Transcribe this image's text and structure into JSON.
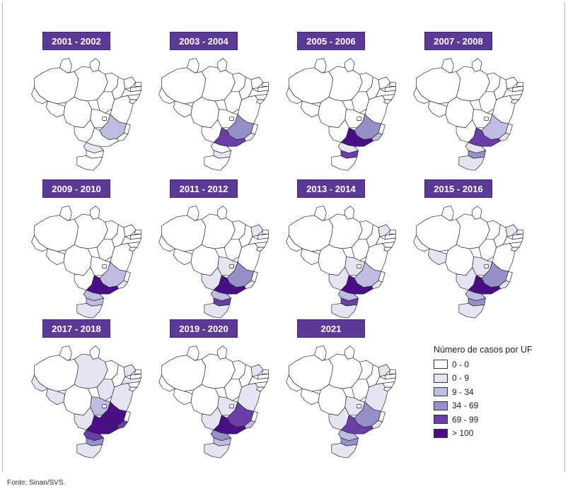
{
  "figure": {
    "source": "Fonte: Sinan/SVS."
  },
  "legend": {
    "title": "Número de casos por UF",
    "classes": [
      {
        "label": "0 - 0",
        "color": "#ffffff"
      },
      {
        "label": "0 - 9",
        "color": "#e6e4f2"
      },
      {
        "label": "9 - 34",
        "color": "#bcbde0"
      },
      {
        "label": "34 - 69",
        "color": "#9391c8"
      },
      {
        "label": "69 - 99",
        "color": "#6a3ea7"
      },
      {
        "label": "> 100",
        "color": "#4a0f86"
      }
    ]
  },
  "periods": [
    {
      "label": "2001 - 2002",
      "classes": {
        "mg": 2,
        "sp": 0,
        "pr": 1,
        "sc": 0,
        "rs": 0,
        "ms": 0,
        "go": 0,
        "rj": 0
      }
    },
    {
      "label": "2003 - 2004",
      "classes": {
        "mg": 3,
        "sp": 4,
        "pr": 0,
        "sc": 1,
        "rs": 0,
        "ms": 0,
        "go": 0,
        "rj": 1
      }
    },
    {
      "label": "2005 - 2006",
      "classes": {
        "mg": 3,
        "sp": 5,
        "pr": 1,
        "sc": 4,
        "rs": 0,
        "ms": 0,
        "go": 0,
        "rj": 2
      }
    },
    {
      "label": "2007 - 2008",
      "classes": {
        "mg": 2,
        "sp": 4,
        "pr": 1,
        "sc": 3,
        "rs": 1,
        "ms": 0,
        "go": 0,
        "rj": 1
      }
    },
    {
      "label": "2009 - 2010",
      "classes": {
        "mg": 2,
        "sp": 5,
        "pr": 2,
        "sc": 2,
        "rs": 1,
        "ms": 0,
        "go": 0,
        "rj": 1
      }
    },
    {
      "label": "2011 - 2012",
      "classes": {
        "mg": 3,
        "sp": 5,
        "pr": 2,
        "sc": 4,
        "rs": 1,
        "ms": 1,
        "go": 1,
        "rj": 1,
        "ba": 0,
        "ce": 1
      }
    },
    {
      "label": "2013 - 2014",
      "classes": {
        "mg": 2,
        "sp": 5,
        "pr": 2,
        "sc": 4,
        "rs": 1,
        "ms": 1,
        "go": 1,
        "rj": 1,
        "ce": 1
      }
    },
    {
      "label": "2015 - 2016",
      "classes": {
        "mg": 3,
        "sp": 5,
        "pr": 2,
        "sc": 3,
        "rs": 1,
        "ms": 1,
        "go": 1,
        "rj": 1,
        "ro": 1,
        "ce": 1
      }
    },
    {
      "label": "2017 - 2018",
      "classes": {
        "mg": 5,
        "sp": 5,
        "pr": 4,
        "sc": 3,
        "rs": 1,
        "ms": 1,
        "go": 2,
        "rj": 4,
        "ba": 1,
        "pa": 1,
        "to": 1,
        "ro": 1,
        "ce": 1,
        "pe": 1,
        "ac": 1
      }
    },
    {
      "label": "2019 - 2020",
      "classes": {
        "mg": 4,
        "sp": 5,
        "pr": 3,
        "sc": 2,
        "rs": 1,
        "ms": 1,
        "go": 1,
        "rj": 2,
        "ba": 1,
        "ce": 1
      }
    },
    {
      "label": "2021",
      "classes": {
        "mg": 3,
        "sp": 4,
        "pr": 2,
        "sc": 3,
        "rs": 1,
        "ms": 1,
        "go": 1,
        "rj": 1,
        "ba": 1,
        "ce": 1
      }
    }
  ]
}
